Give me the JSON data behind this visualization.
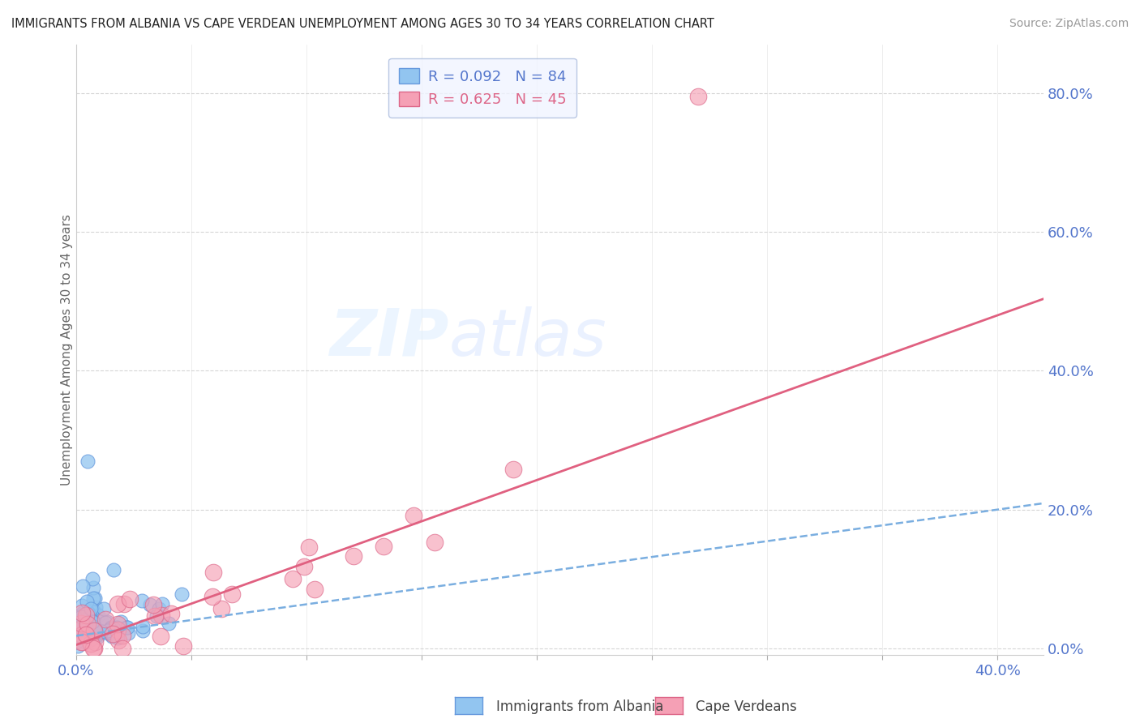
{
  "title": "IMMIGRANTS FROM ALBANIA VS CAPE VERDEAN UNEMPLOYMENT AMONG AGES 30 TO 34 YEARS CORRELATION CHART",
  "source": "Source: ZipAtlas.com",
  "ylabel": "Unemployment Among Ages 30 to 34 years",
  "albania_R": 0.092,
  "albania_N": 84,
  "capeverde_R": 0.625,
  "capeverde_N": 45,
  "xlim": [
    0.0,
    0.42
  ],
  "ylim": [
    -0.01,
    0.87
  ],
  "right_yticks": [
    0.0,
    0.2,
    0.4,
    0.6,
    0.8
  ],
  "xtick_positions": [
    0.0,
    0.05,
    0.1,
    0.15,
    0.2,
    0.25,
    0.3,
    0.35,
    0.4
  ],
  "title_color": "#222222",
  "albania_color": "#92C5F0",
  "albania_edge_color": "#6699DD",
  "capeverde_color": "#F5A0B5",
  "capeverde_edge_color": "#DD6688",
  "albania_line_color": "#7AAEE0",
  "capeverde_line_color": "#E06080",
  "right_tick_color": "#5577CC",
  "watermark_zip": "ZIP",
  "watermark_atlas": "atlas",
  "background_color": "#FFFFFF",
  "grid_color": "#CCCCCC",
  "legend_facecolor": "#F0F4FF",
  "legend_edgecolor": "#AABBDD",
  "legend_text_albania": "#5577CC",
  "legend_text_capeverde": "#DD6688",
  "trendline_albania_slope": 0.45,
  "trendline_albania_intercept": 0.018,
  "trendline_capeverde_slope": 1.18,
  "trendline_capeverde_intercept": 0.005,
  "bottom_legend_albania": "Immigrants from Albania",
  "bottom_legend_capeverde": "Cape Verdeans"
}
